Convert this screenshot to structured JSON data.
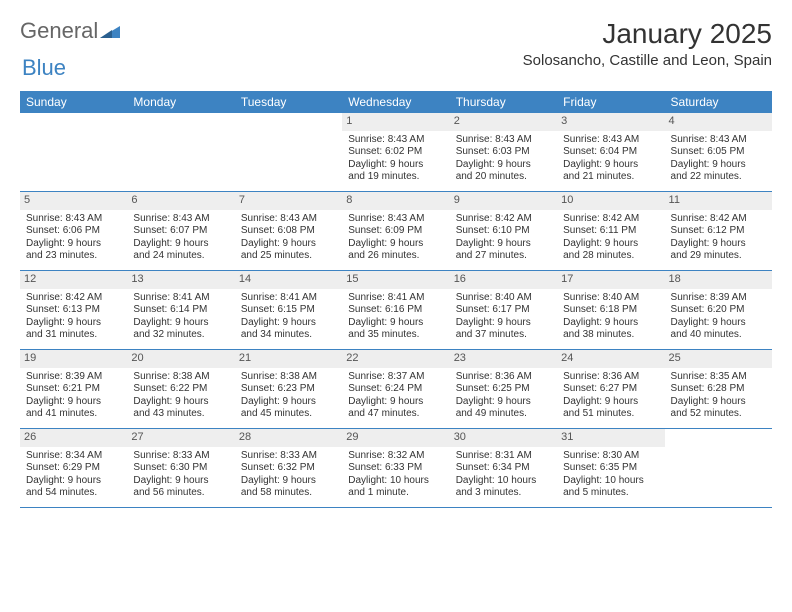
{
  "logo": {
    "textA": "General",
    "textB": "Blue"
  },
  "title": "January 2025",
  "location": "Solosancho, Castille and Leon, Spain",
  "colors": {
    "header_bg": "#3d83c2",
    "header_text": "#ffffff",
    "daynum_bg": "#eeeeee",
    "border": "#3d83c2",
    "text": "#333333",
    "logo_gray": "#666666",
    "logo_blue": "#3d83c2",
    "page_bg": "#ffffff"
  },
  "weekdays": [
    "Sunday",
    "Monday",
    "Tuesday",
    "Wednesday",
    "Thursday",
    "Friday",
    "Saturday"
  ],
  "weeks": [
    [
      {
        "empty": true
      },
      {
        "empty": true
      },
      {
        "empty": true
      },
      {
        "num": "1",
        "sunrise": "Sunrise: 8:43 AM",
        "sunset": "Sunset: 6:02 PM",
        "day1": "Daylight: 9 hours",
        "day2": "and 19 minutes."
      },
      {
        "num": "2",
        "sunrise": "Sunrise: 8:43 AM",
        "sunset": "Sunset: 6:03 PM",
        "day1": "Daylight: 9 hours",
        "day2": "and 20 minutes."
      },
      {
        "num": "3",
        "sunrise": "Sunrise: 8:43 AM",
        "sunset": "Sunset: 6:04 PM",
        "day1": "Daylight: 9 hours",
        "day2": "and 21 minutes."
      },
      {
        "num": "4",
        "sunrise": "Sunrise: 8:43 AM",
        "sunset": "Sunset: 6:05 PM",
        "day1": "Daylight: 9 hours",
        "day2": "and 22 minutes."
      }
    ],
    [
      {
        "num": "5",
        "sunrise": "Sunrise: 8:43 AM",
        "sunset": "Sunset: 6:06 PM",
        "day1": "Daylight: 9 hours",
        "day2": "and 23 minutes."
      },
      {
        "num": "6",
        "sunrise": "Sunrise: 8:43 AM",
        "sunset": "Sunset: 6:07 PM",
        "day1": "Daylight: 9 hours",
        "day2": "and 24 minutes."
      },
      {
        "num": "7",
        "sunrise": "Sunrise: 8:43 AM",
        "sunset": "Sunset: 6:08 PM",
        "day1": "Daylight: 9 hours",
        "day2": "and 25 minutes."
      },
      {
        "num": "8",
        "sunrise": "Sunrise: 8:43 AM",
        "sunset": "Sunset: 6:09 PM",
        "day1": "Daylight: 9 hours",
        "day2": "and 26 minutes."
      },
      {
        "num": "9",
        "sunrise": "Sunrise: 8:42 AM",
        "sunset": "Sunset: 6:10 PM",
        "day1": "Daylight: 9 hours",
        "day2": "and 27 minutes."
      },
      {
        "num": "10",
        "sunrise": "Sunrise: 8:42 AM",
        "sunset": "Sunset: 6:11 PM",
        "day1": "Daylight: 9 hours",
        "day2": "and 28 minutes."
      },
      {
        "num": "11",
        "sunrise": "Sunrise: 8:42 AM",
        "sunset": "Sunset: 6:12 PM",
        "day1": "Daylight: 9 hours",
        "day2": "and 29 minutes."
      }
    ],
    [
      {
        "num": "12",
        "sunrise": "Sunrise: 8:42 AM",
        "sunset": "Sunset: 6:13 PM",
        "day1": "Daylight: 9 hours",
        "day2": "and 31 minutes."
      },
      {
        "num": "13",
        "sunrise": "Sunrise: 8:41 AM",
        "sunset": "Sunset: 6:14 PM",
        "day1": "Daylight: 9 hours",
        "day2": "and 32 minutes."
      },
      {
        "num": "14",
        "sunrise": "Sunrise: 8:41 AM",
        "sunset": "Sunset: 6:15 PM",
        "day1": "Daylight: 9 hours",
        "day2": "and 34 minutes."
      },
      {
        "num": "15",
        "sunrise": "Sunrise: 8:41 AM",
        "sunset": "Sunset: 6:16 PM",
        "day1": "Daylight: 9 hours",
        "day2": "and 35 minutes."
      },
      {
        "num": "16",
        "sunrise": "Sunrise: 8:40 AM",
        "sunset": "Sunset: 6:17 PM",
        "day1": "Daylight: 9 hours",
        "day2": "and 37 minutes."
      },
      {
        "num": "17",
        "sunrise": "Sunrise: 8:40 AM",
        "sunset": "Sunset: 6:18 PM",
        "day1": "Daylight: 9 hours",
        "day2": "and 38 minutes."
      },
      {
        "num": "18",
        "sunrise": "Sunrise: 8:39 AM",
        "sunset": "Sunset: 6:20 PM",
        "day1": "Daylight: 9 hours",
        "day2": "and 40 minutes."
      }
    ],
    [
      {
        "num": "19",
        "sunrise": "Sunrise: 8:39 AM",
        "sunset": "Sunset: 6:21 PM",
        "day1": "Daylight: 9 hours",
        "day2": "and 41 minutes."
      },
      {
        "num": "20",
        "sunrise": "Sunrise: 8:38 AM",
        "sunset": "Sunset: 6:22 PM",
        "day1": "Daylight: 9 hours",
        "day2": "and 43 minutes."
      },
      {
        "num": "21",
        "sunrise": "Sunrise: 8:38 AM",
        "sunset": "Sunset: 6:23 PM",
        "day1": "Daylight: 9 hours",
        "day2": "and 45 minutes."
      },
      {
        "num": "22",
        "sunrise": "Sunrise: 8:37 AM",
        "sunset": "Sunset: 6:24 PM",
        "day1": "Daylight: 9 hours",
        "day2": "and 47 minutes."
      },
      {
        "num": "23",
        "sunrise": "Sunrise: 8:36 AM",
        "sunset": "Sunset: 6:25 PM",
        "day1": "Daylight: 9 hours",
        "day2": "and 49 minutes."
      },
      {
        "num": "24",
        "sunrise": "Sunrise: 8:36 AM",
        "sunset": "Sunset: 6:27 PM",
        "day1": "Daylight: 9 hours",
        "day2": "and 51 minutes."
      },
      {
        "num": "25",
        "sunrise": "Sunrise: 8:35 AM",
        "sunset": "Sunset: 6:28 PM",
        "day1": "Daylight: 9 hours",
        "day2": "and 52 minutes."
      }
    ],
    [
      {
        "num": "26",
        "sunrise": "Sunrise: 8:34 AM",
        "sunset": "Sunset: 6:29 PM",
        "day1": "Daylight: 9 hours",
        "day2": "and 54 minutes."
      },
      {
        "num": "27",
        "sunrise": "Sunrise: 8:33 AM",
        "sunset": "Sunset: 6:30 PM",
        "day1": "Daylight: 9 hours",
        "day2": "and 56 minutes."
      },
      {
        "num": "28",
        "sunrise": "Sunrise: 8:33 AM",
        "sunset": "Sunset: 6:32 PM",
        "day1": "Daylight: 9 hours",
        "day2": "and 58 minutes."
      },
      {
        "num": "29",
        "sunrise": "Sunrise: 8:32 AM",
        "sunset": "Sunset: 6:33 PM",
        "day1": "Daylight: 10 hours",
        "day2": "and 1 minute."
      },
      {
        "num": "30",
        "sunrise": "Sunrise: 8:31 AM",
        "sunset": "Sunset: 6:34 PM",
        "day1": "Daylight: 10 hours",
        "day2": "and 3 minutes."
      },
      {
        "num": "31",
        "sunrise": "Sunrise: 8:30 AM",
        "sunset": "Sunset: 6:35 PM",
        "day1": "Daylight: 10 hours",
        "day2": "and 5 minutes."
      },
      {
        "empty": true
      }
    ]
  ]
}
